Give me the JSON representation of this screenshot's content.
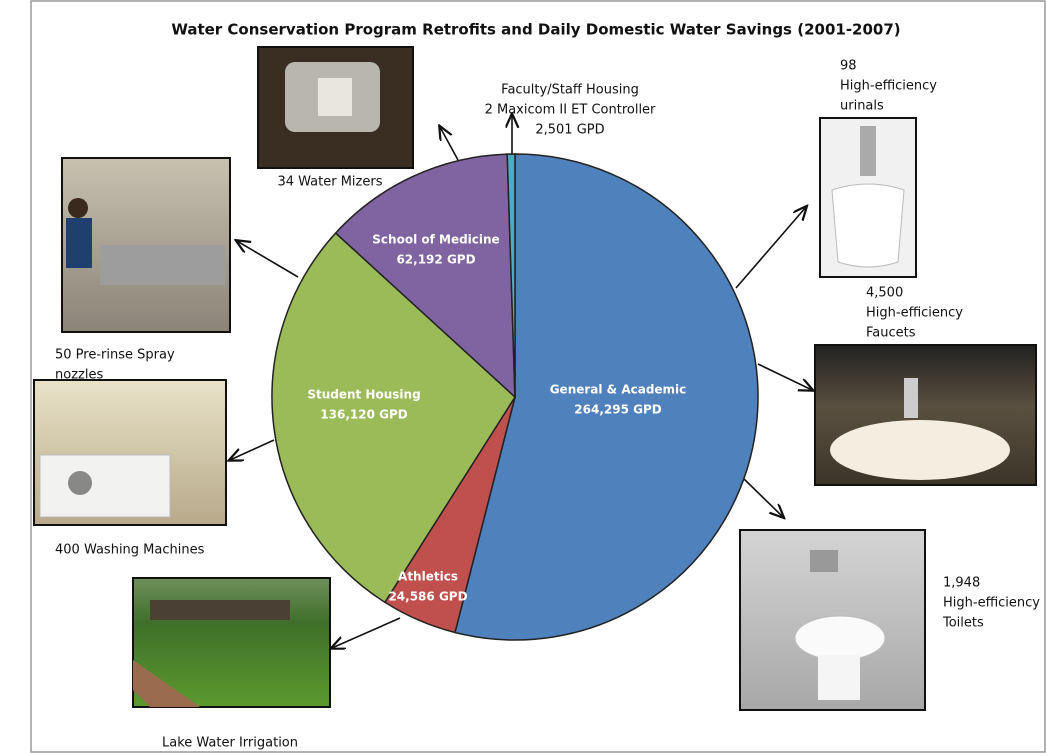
{
  "chart_data": {
    "type": "pie",
    "title": "Water Conservation Program Retrofits and Daily Domestic Water Savings (2001-2007)",
    "categories": [
      "General & Academic",
      "Athletics",
      "Student Housing",
      "School of Medicine",
      "Faculty/Staff Housing"
    ],
    "values": [
      264295,
      24586,
      136120,
      62192,
      2501
    ],
    "value_labels": [
      "264,295 GPD",
      "24,586 GPD",
      "136,120 GPD",
      "62,192 GPD",
      "2,501 GPD"
    ],
    "colors": [
      "#4f81bd",
      "#c0504d",
      "#9bbb59",
      "#8064a2",
      "#4bacc6"
    ],
    "annotations": [
      {
        "lines": [
          "2 Maxicom II ET Controller"
        ]
      },
      {
        "lines": [
          "34 Water Mizers"
        ]
      },
      {
        "lines": [
          "50 Pre-rinse Spray",
          "nozzles"
        ]
      },
      {
        "lines": [
          "400 Washing Machines"
        ]
      },
      {
        "lines": [
          "Lake Water Irrigation"
        ]
      },
      {
        "lines": [
          "98",
          "High-efficiency",
          "urinals"
        ]
      },
      {
        "lines": [
          "4,500",
          "High-efficiency",
          "Faucets"
        ]
      },
      {
        "lines": [
          "1,948",
          "High-efficiency",
          "Toilets"
        ]
      }
    ]
  }
}
